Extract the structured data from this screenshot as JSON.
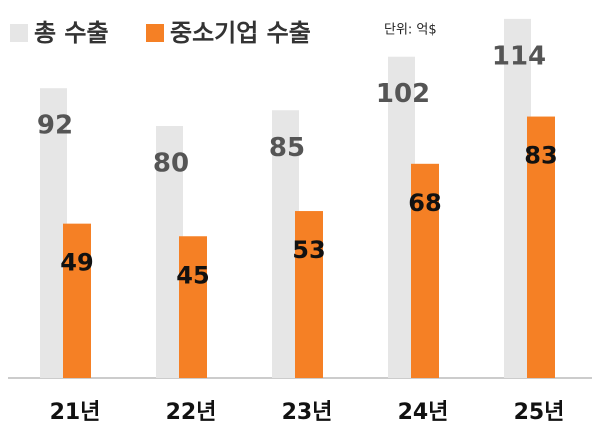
{
  "chart_data": {
    "type": "bar",
    "unit_note": "단위: 억$",
    "categories": [
      "21년",
      "22년",
      "23년",
      "24년",
      "25년"
    ],
    "series": [
      {
        "name": "총 수출",
        "color": "#e6e6e6",
        "values": [
          92,
          80,
          85,
          102,
          114
        ]
      },
      {
        "name": "중소기업 수출",
        "color": "#f58025",
        "values": [
          49,
          45,
          53,
          68,
          83
        ]
      }
    ],
    "ylim": [
      0,
      120
    ]
  }
}
